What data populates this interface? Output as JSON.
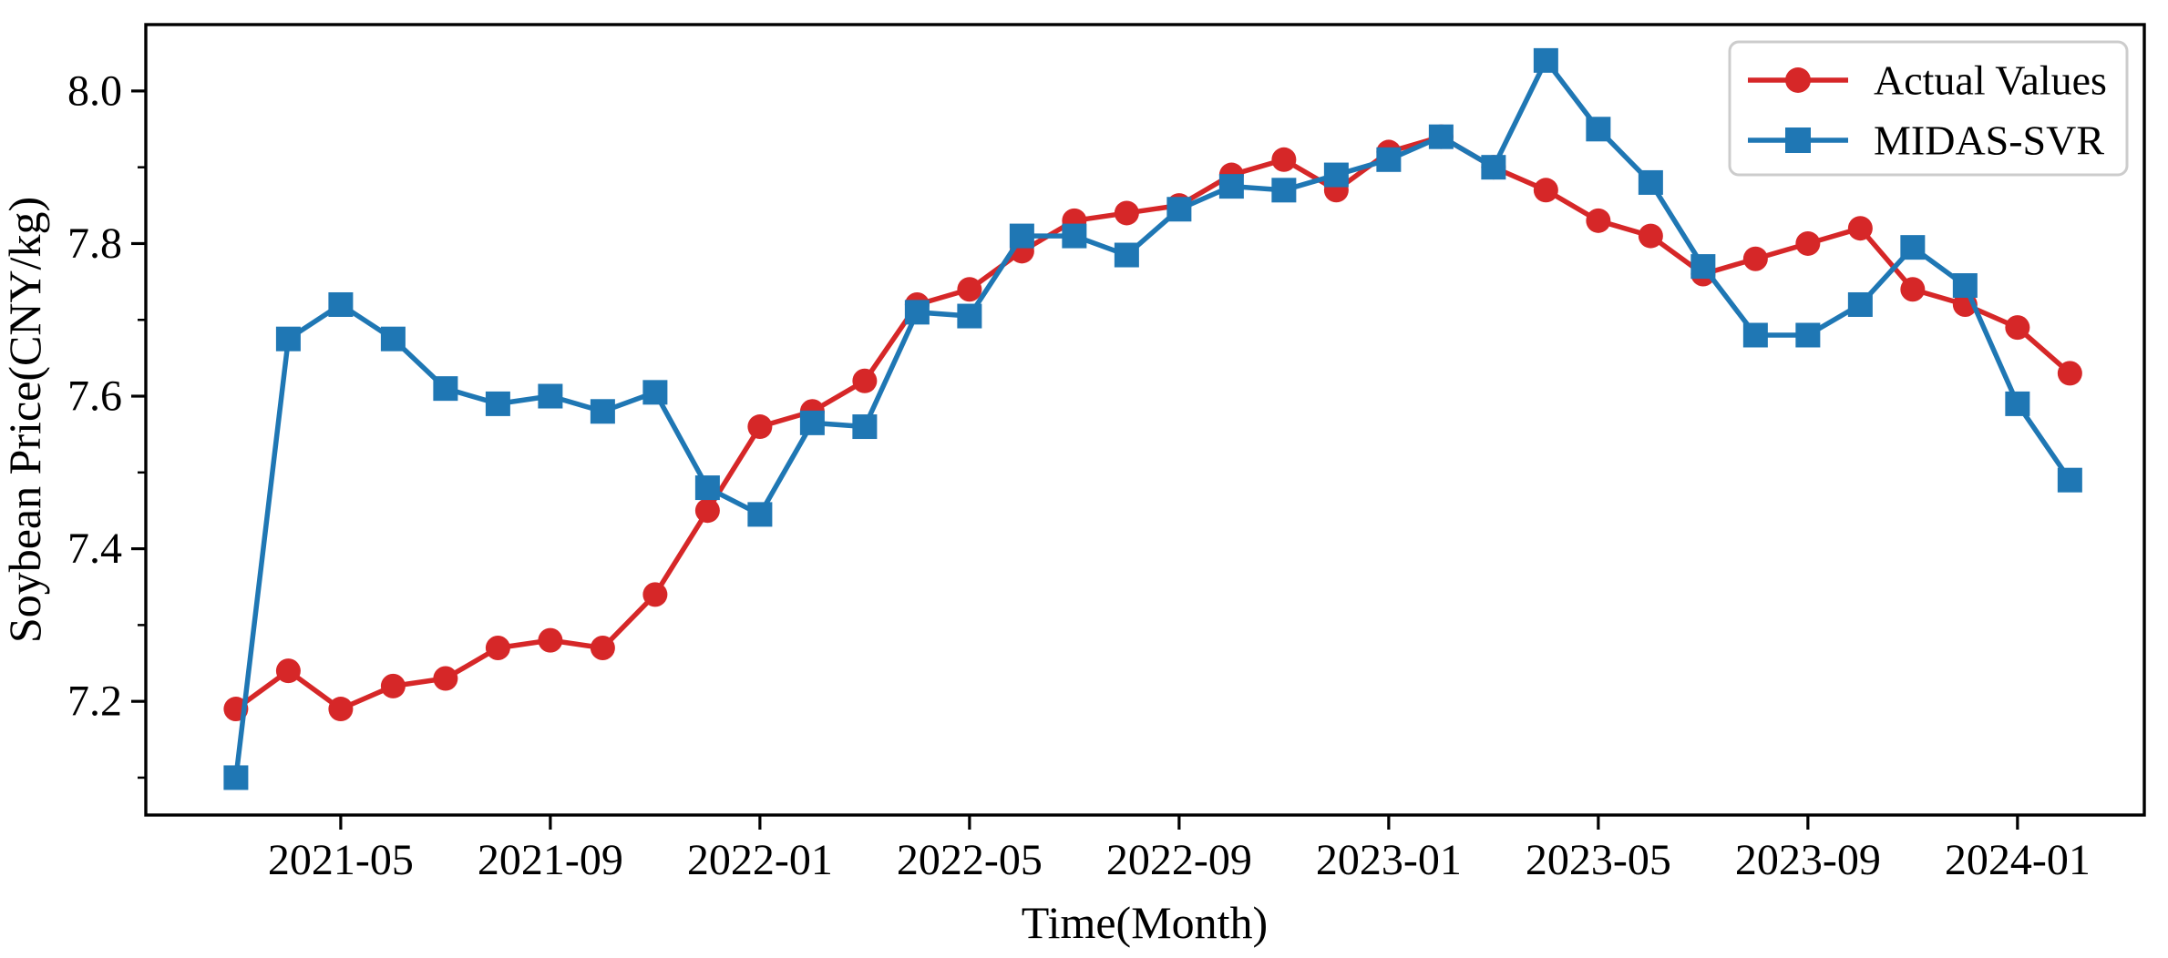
{
  "figure": {
    "background": "#ffffff",
    "spine_color": "#000000"
  },
  "axes": {
    "y_tick_labels": [
      "8.0",
      "7.8",
      "7.6",
      "7.4",
      "7.2"
    ],
    "y_tick_values": [
      8.0,
      7.8,
      7.6,
      7.4,
      7.2
    ],
    "y_minor_tick_values": [
      7.9,
      7.7,
      7.5,
      7.3,
      7.1
    ],
    "x_tick_labels": [
      "2021-05",
      "2021-09",
      "2022-01",
      "2022-05",
      "2022-09",
      "2023-01",
      "2023-05",
      "2023-09",
      "2024-01"
    ],
    "x_tick_month_indices": [
      2,
      6,
      10,
      14,
      18,
      22,
      26,
      30,
      34
    ]
  },
  "legend": {
    "entries": [
      {
        "label": "Actual Values",
        "color": "#d62728",
        "marker": "circle"
      },
      {
        "label": "MIDAS-SVR",
        "color": "#1f77b4",
        "marker": "square"
      }
    ]
  },
  "chart_data": {
    "type": "line",
    "title": "",
    "xlabel": "Time(Month)",
    "ylabel": "Soybean Price(CNY/kg)",
    "x": [
      "2021-03",
      "2021-04",
      "2021-05",
      "2021-06",
      "2021-07",
      "2021-08",
      "2021-09",
      "2021-10",
      "2021-11",
      "2021-12",
      "2022-01",
      "2022-02",
      "2022-03",
      "2022-04",
      "2022-05",
      "2022-06",
      "2022-07",
      "2022-08",
      "2022-09",
      "2022-10",
      "2022-11",
      "2022-12",
      "2023-01",
      "2023-02",
      "2023-03",
      "2023-04",
      "2023-05",
      "2023-06",
      "2023-07",
      "2023-08",
      "2023-09",
      "2023-10",
      "2023-11",
      "2023-12",
      "2024-01",
      "2024-02"
    ],
    "series": [
      {
        "name": "Actual Values",
        "color": "#d62728",
        "marker": "circle",
        "values": [
          7.19,
          7.24,
          7.19,
          7.22,
          7.23,
          7.27,
          7.28,
          7.27,
          7.34,
          7.45,
          7.56,
          7.58,
          7.62,
          7.72,
          7.74,
          7.79,
          7.83,
          7.84,
          7.85,
          7.89,
          7.91,
          7.87,
          7.92,
          7.94,
          7.9,
          7.87,
          7.83,
          7.81,
          7.76,
          7.78,
          7.8,
          7.82,
          7.74,
          7.72,
          7.69,
          7.63
        ]
      },
      {
        "name": "MIDAS-SVR",
        "color": "#1f77b4",
        "marker": "square",
        "values": [
          7.1,
          7.675,
          7.72,
          7.675,
          7.61,
          7.59,
          7.6,
          7.58,
          7.605,
          7.48,
          7.445,
          7.565,
          7.56,
          7.71,
          7.705,
          7.81,
          7.81,
          7.785,
          7.845,
          7.875,
          7.87,
          7.89,
          7.91,
          7.94,
          7.9,
          8.04,
          7.95,
          7.88,
          7.77,
          7.68,
          7.68,
          7.72,
          7.795,
          7.745,
          7.59,
          7.49
        ]
      }
    ],
    "ylim": [
      7.05,
      8.09
    ],
    "grid": false,
    "legend_position": "upper right"
  }
}
